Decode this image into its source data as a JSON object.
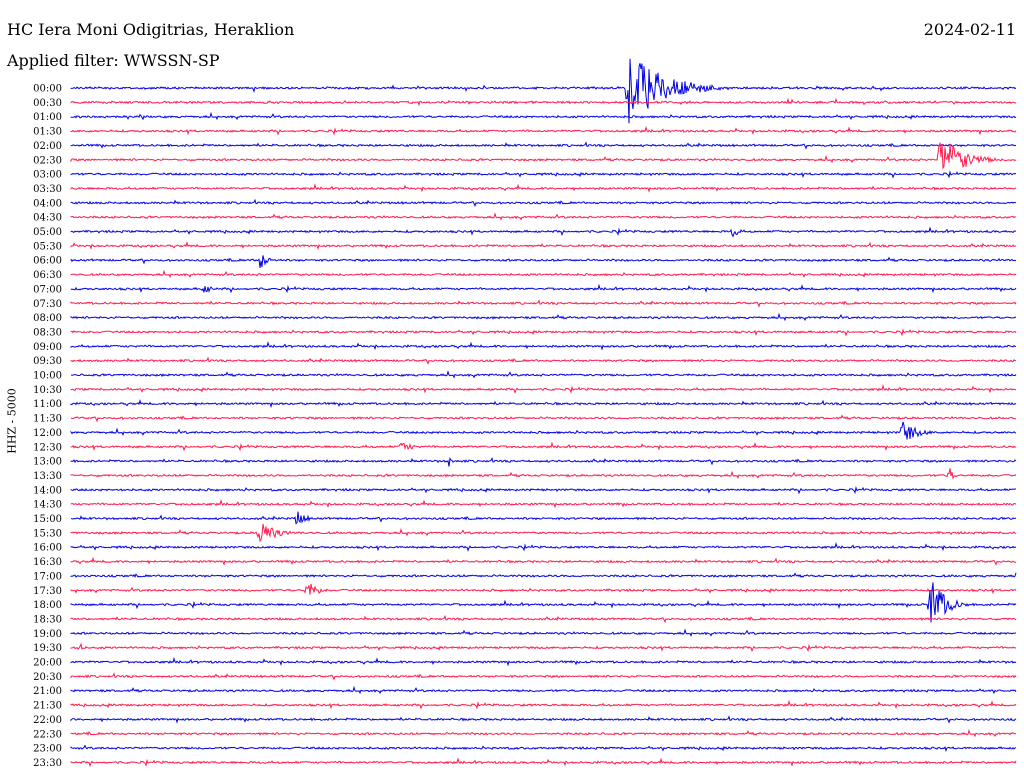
{
  "header": {
    "station": "HC Iera Moni Odigitrias, Heraklion",
    "filter": "Applied filter: WWSSN-SP",
    "date": "2024-02-11",
    "channel": "HHZ - 5000"
  },
  "colors": {
    "even": "#0000e6",
    "odd": "#ff1a4d"
  },
  "chart_data": {
    "type": "line",
    "title": "HC Iera Moni Odigitrias, Heraklion",
    "subtitle": "Applied filter: WWSSN-SP",
    "ylabel": "HHZ - 5000",
    "rows": [
      "00:00",
      "00:30",
      "01:00",
      "01:30",
      "02:00",
      "02:30",
      "03:00",
      "03:30",
      "04:00",
      "04:30",
      "05:00",
      "05:30",
      "06:00",
      "06:30",
      "07:00",
      "07:30",
      "08:00",
      "08:30",
      "09:00",
      "09:30",
      "10:00",
      "10:30",
      "11:00",
      "11:30",
      "12:00",
      "12:30",
      "13:00",
      "13:30",
      "14:00",
      "14:30",
      "15:00",
      "15:30",
      "16:00",
      "16:30",
      "17:00",
      "17:30",
      "18:00",
      "18:30",
      "19:00",
      "19:30",
      "20:00",
      "20:30",
      "21:00",
      "21:30",
      "22:00",
      "22:30",
      "23:00",
      "23:30"
    ],
    "events": [
      {
        "row": 0,
        "x": 0.59,
        "amp": 38,
        "dur": 0.1
      },
      {
        "row": 5,
        "x": 0.92,
        "amp": 26,
        "dur": 0.06
      },
      {
        "row": 10,
        "x": 0.7,
        "amp": 6,
        "dur": 0.02
      },
      {
        "row": 12,
        "x": 0.2,
        "amp": 10,
        "dur": 0.02
      },
      {
        "row": 14,
        "x": 0.14,
        "amp": 6,
        "dur": 0.02
      },
      {
        "row": 24,
        "x": 0.88,
        "amp": 12,
        "dur": 0.04
      },
      {
        "row": 25,
        "x": 0.35,
        "amp": 6,
        "dur": 0.03
      },
      {
        "row": 26,
        "x": 0.4,
        "amp": 7,
        "dur": 0.01
      },
      {
        "row": 27,
        "x": 0.93,
        "amp": 9,
        "dur": 0.01
      },
      {
        "row": 30,
        "x": 0.24,
        "amp": 10,
        "dur": 0.02
      },
      {
        "row": 31,
        "x": 0.2,
        "amp": 14,
        "dur": 0.04
      },
      {
        "row": 35,
        "x": 0.25,
        "amp": 10,
        "dur": 0.03
      },
      {
        "row": 36,
        "x": 0.91,
        "amp": 28,
        "dur": 0.04
      },
      {
        "row": 39,
        "x": 0.01,
        "amp": 5,
        "dur": 0.01
      }
    ]
  }
}
